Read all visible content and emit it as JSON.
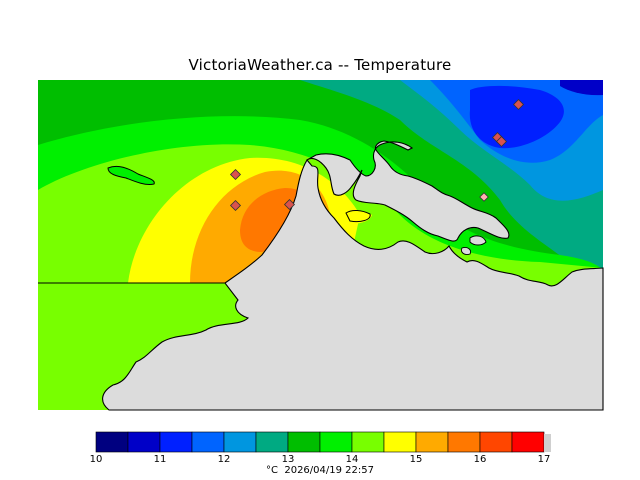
{
  "map": {
    "title": "VictoriaWeather.ca -- Temperature",
    "land_color": "#dcdcdc",
    "station_color": "#d9534f",
    "stations_count": 7
  },
  "legend": {
    "unit": "°C",
    "timestamp": "2026/04/19 22:57",
    "min": 10,
    "max": 17,
    "tick_labels": [
      "10",
      "11",
      "12",
      "13",
      "14",
      "15",
      "16",
      "17"
    ],
    "colors": [
      "#000080",
      "#0000c8",
      "#0020ff",
      "#0064ff",
      "#0096e0",
      "#00aa82",
      "#00be00",
      "#00f000",
      "#78ff00",
      "#ffff00",
      "#ffaa00",
      "#ff7800",
      "#ff4600",
      "#ff0000"
    ]
  }
}
